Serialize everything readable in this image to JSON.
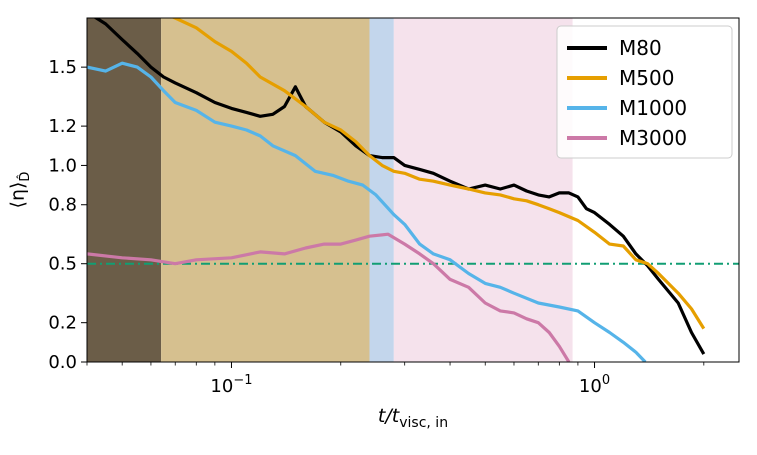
{
  "chart_data": {
    "type": "line",
    "xscale": "log",
    "xlim": [
      0.04,
      2.5
    ],
    "ylim": [
      0.0,
      1.75
    ],
    "ylabel_text": "⟨η⟩",
    "ylabel_sub": "D̂",
    "xlabel_text": "t/t",
    "xlabel_sub": "visc, in",
    "x_ticks": [
      {
        "value": 0.1,
        "base": "10",
        "exp": "−1"
      },
      {
        "value": 1.0,
        "base": "10",
        "exp": "0"
      }
    ],
    "y_ticks": [
      {
        "value": 0.0,
        "label": "0.0"
      },
      {
        "value": 0.2,
        "label": "0.2"
      },
      {
        "value": 0.5,
        "label": "0.5"
      },
      {
        "value": 0.8,
        "label": "0.8"
      },
      {
        "value": 1.0,
        "label": "1.0"
      },
      {
        "value": 1.2,
        "label": "1.2"
      },
      {
        "value": 1.5,
        "label": "1.5"
      }
    ],
    "bands": [
      {
        "from": 0.04,
        "to": 0.064,
        "color": "#6b5d48",
        "opacity": 1.0
      },
      {
        "from": 0.064,
        "to": 0.24,
        "color": "#d6c08f",
        "opacity": 1.0
      },
      {
        "from": 0.24,
        "to": 0.28,
        "color": "#c3d6ec",
        "opacity": 1.0
      },
      {
        "from": 0.28,
        "to": 0.87,
        "color": "#f5e2ec",
        "opacity": 1.0
      }
    ],
    "reference_line": {
      "y": 0.5,
      "color": "#119e73",
      "style": "dash-dot"
    },
    "legend_position": "top-right",
    "series": [
      {
        "name": "M80",
        "color": "#000000",
        "x": [
          0.04,
          0.045,
          0.05,
          0.055,
          0.06,
          0.065,
          0.07,
          0.08,
          0.09,
          0.1,
          0.11,
          0.12,
          0.13,
          0.14,
          0.15,
          0.16,
          0.18,
          0.2,
          0.22,
          0.24,
          0.26,
          0.28,
          0.3,
          0.33,
          0.36,
          0.4,
          0.45,
          0.5,
          0.55,
          0.6,
          0.65,
          0.7,
          0.75,
          0.8,
          0.85,
          0.9,
          0.95,
          1.0,
          1.1,
          1.2,
          1.3,
          1.4,
          1.5,
          1.7,
          1.85,
          2.0
        ],
        "y": [
          1.78,
          1.72,
          1.64,
          1.57,
          1.5,
          1.45,
          1.42,
          1.37,
          1.32,
          1.29,
          1.27,
          1.25,
          1.26,
          1.3,
          1.4,
          1.3,
          1.22,
          1.17,
          1.1,
          1.05,
          1.04,
          1.04,
          1.0,
          0.98,
          0.96,
          0.92,
          0.88,
          0.9,
          0.88,
          0.9,
          0.87,
          0.85,
          0.84,
          0.86,
          0.86,
          0.84,
          0.78,
          0.76,
          0.7,
          0.64,
          0.55,
          0.49,
          0.42,
          0.3,
          0.15,
          0.04
        ]
      },
      {
        "name": "M500",
        "color": "#e69f00",
        "x": [
          0.064,
          0.07,
          0.08,
          0.09,
          0.1,
          0.11,
          0.12,
          0.14,
          0.16,
          0.18,
          0.2,
          0.22,
          0.24,
          0.26,
          0.28,
          0.3,
          0.33,
          0.36,
          0.4,
          0.45,
          0.5,
          0.55,
          0.6,
          0.65,
          0.7,
          0.75,
          0.8,
          0.9,
          1.0,
          1.1,
          1.2,
          1.3,
          1.4,
          1.5,
          1.7,
          1.85,
          2.0
        ],
        "y": [
          1.78,
          1.75,
          1.7,
          1.63,
          1.58,
          1.52,
          1.45,
          1.38,
          1.3,
          1.22,
          1.18,
          1.12,
          1.05,
          1.0,
          0.97,
          0.96,
          0.93,
          0.92,
          0.9,
          0.88,
          0.86,
          0.85,
          0.83,
          0.82,
          0.8,
          0.78,
          0.76,
          0.72,
          0.66,
          0.6,
          0.59,
          0.52,
          0.5,
          0.45,
          0.35,
          0.27,
          0.17
        ]
      },
      {
        "name": "M1000",
        "color": "#56b4e9",
        "x": [
          0.04,
          0.045,
          0.05,
          0.055,
          0.06,
          0.065,
          0.07,
          0.08,
          0.09,
          0.1,
          0.11,
          0.12,
          0.13,
          0.15,
          0.17,
          0.19,
          0.21,
          0.23,
          0.25,
          0.28,
          0.3,
          0.33,
          0.36,
          0.4,
          0.45,
          0.5,
          0.55,
          0.6,
          0.7,
          0.8,
          0.9,
          1.0,
          1.1,
          1.2,
          1.3,
          1.38
        ],
        "y": [
          1.5,
          1.48,
          1.52,
          1.5,
          1.45,
          1.38,
          1.32,
          1.28,
          1.22,
          1.2,
          1.18,
          1.15,
          1.1,
          1.05,
          0.97,
          0.95,
          0.92,
          0.9,
          0.85,
          0.75,
          0.7,
          0.6,
          0.55,
          0.52,
          0.45,
          0.4,
          0.38,
          0.35,
          0.3,
          0.28,
          0.26,
          0.2,
          0.15,
          0.1,
          0.05,
          0.0
        ]
      },
      {
        "name": "M3000",
        "color": "#cc79a7",
        "x": [
          0.04,
          0.05,
          0.06,
          0.07,
          0.08,
          0.1,
          0.12,
          0.14,
          0.16,
          0.18,
          0.2,
          0.22,
          0.24,
          0.27,
          0.3,
          0.33,
          0.36,
          0.4,
          0.45,
          0.5,
          0.55,
          0.6,
          0.65,
          0.7,
          0.75,
          0.8,
          0.85
        ],
        "y": [
          0.55,
          0.53,
          0.52,
          0.5,
          0.52,
          0.53,
          0.56,
          0.55,
          0.58,
          0.6,
          0.6,
          0.62,
          0.64,
          0.65,
          0.6,
          0.55,
          0.5,
          0.42,
          0.38,
          0.3,
          0.26,
          0.25,
          0.22,
          0.2,
          0.15,
          0.08,
          0.0
        ]
      }
    ]
  }
}
